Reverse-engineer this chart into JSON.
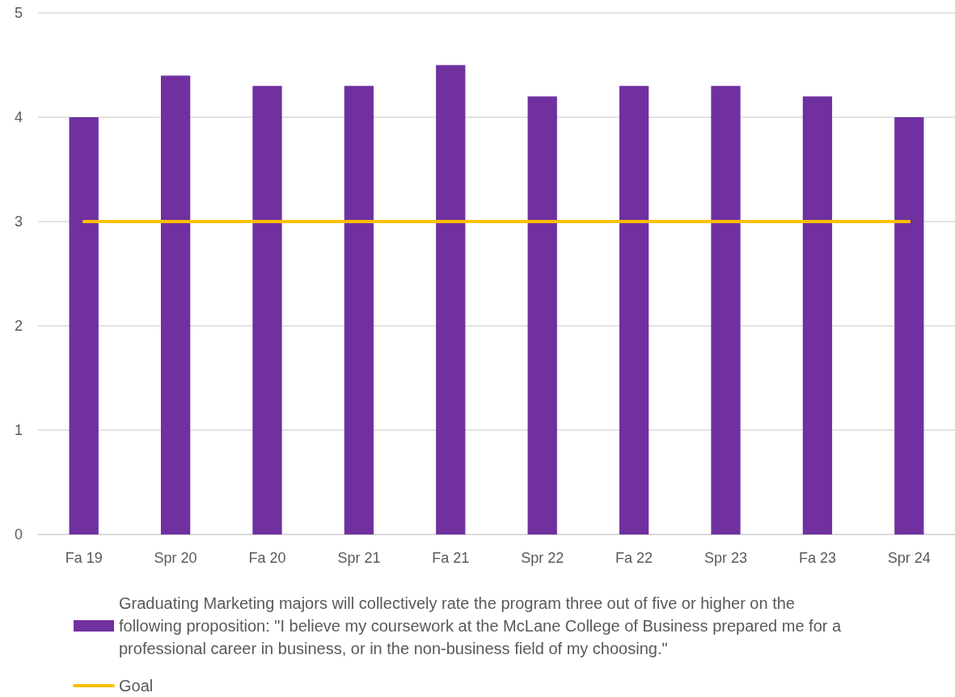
{
  "chart_data": {
    "type": "bar",
    "categories": [
      "Fa 19",
      "Spr 20",
      "Fa 20",
      "Spr 21",
      "Fa 21",
      "Spr 22",
      "Fa 22",
      "Spr 23",
      "Fa 23",
      "Spr 24"
    ],
    "series": [
      {
        "name": "Graduating Marketing majors will collectively rate the program three out of five or higher on the following proposition: \"I believe my coursework at the McLane College of Business prepared me for a professional career in business, or in the non-business field of my choosing.\"",
        "color": "#7030a0",
        "values": [
          4,
          4.4,
          4.3,
          4.3,
          4.5,
          4.2,
          4.3,
          4.3,
          4.2,
          4
        ]
      },
      {
        "name": "Goal",
        "type": "line",
        "color": "#ffc000",
        "values": [
          3,
          3,
          3,
          3,
          3,
          3,
          3,
          3,
          3,
          3
        ]
      }
    ],
    "ylim": [
      0,
      5
    ],
    "yticks": [
      0,
      1,
      2,
      3,
      4,
      5
    ],
    "grid": "y",
    "legend": "bottom",
    "marker": "none",
    "line_style": "solid"
  }
}
